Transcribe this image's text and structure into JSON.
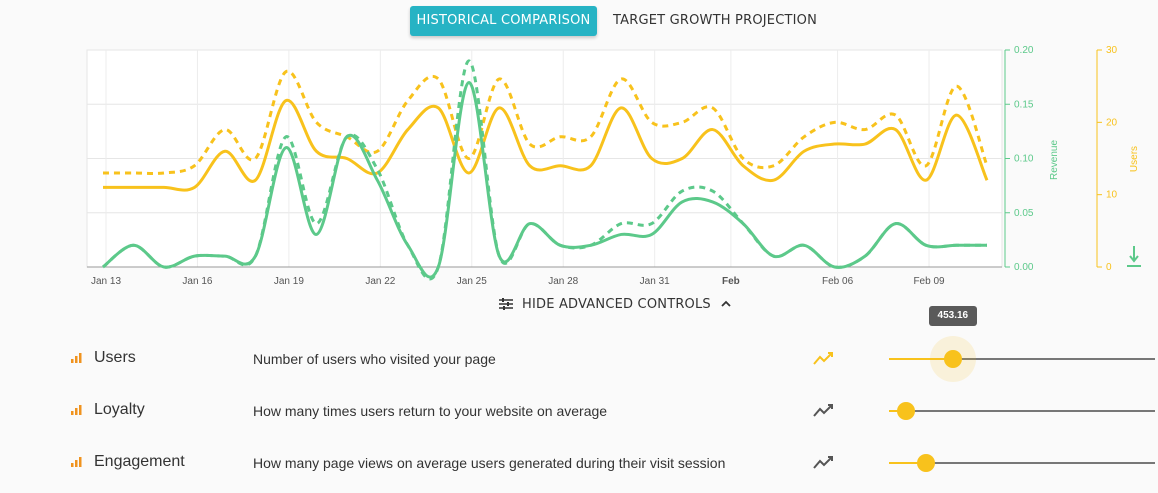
{
  "tabs": [
    {
      "label": "HISTORICAL COMPARISON",
      "active": true
    },
    {
      "label": "TARGET GROWTH PROJECTION",
      "active": false
    }
  ],
  "toggle": {
    "label": "HIDE ADVANCED CONTROLS",
    "icon": "sliders-icon",
    "chevron": "chevron-up-icon"
  },
  "chart_data": {
    "type": "line",
    "x_ticks": [
      "Jan 13",
      "Jan 16",
      "Jan 19",
      "Jan 22",
      "Jan 25",
      "Jan 28",
      "Jan 31",
      "Feb",
      "Feb 06",
      "Feb 09"
    ],
    "x": [
      "Jan 13",
      "Jan 14",
      "Jan 15",
      "Jan 16",
      "Jan 17",
      "Jan 18",
      "Jan 19",
      "Jan 20",
      "Jan 21",
      "Jan 22",
      "Jan 23",
      "Jan 24",
      "Jan 25",
      "Jan 26",
      "Jan 27",
      "Jan 28",
      "Jan 29",
      "Jan 30",
      "Jan 31",
      "Feb 01",
      "Feb 02",
      "Feb 03",
      "Feb 04",
      "Feb 05",
      "Feb 06",
      "Feb 07",
      "Feb 08",
      "Feb 09",
      "Feb 10",
      "Feb 11"
    ],
    "axes": {
      "revenue": {
        "label": "Revenue",
        "ticks": [
          "0.00",
          "0.05",
          "0.10",
          "0.15",
          "0.20"
        ],
        "range": [
          0,
          0.2
        ],
        "color": "#5cc98a"
      },
      "users": {
        "label": "Users",
        "ticks": [
          "0",
          "10",
          "20",
          "30"
        ],
        "range": [
          0,
          30
        ],
        "color": "#f8c21c"
      }
    },
    "grid": true,
    "series": [
      {
        "axis": "users",
        "style": "solid",
        "color": "#f8c21c",
        "values": [
          11,
          11,
          11,
          11,
          16,
          12,
          23,
          16,
          15,
          13,
          19,
          22,
          13,
          22,
          14,
          14,
          14,
          22,
          15,
          15,
          19,
          14,
          12,
          16,
          17,
          17,
          19,
          12,
          21,
          12
        ]
      },
      {
        "axis": "users",
        "style": "dashed",
        "color": "#f8c21c",
        "values": [
          13,
          13,
          13,
          14,
          19,
          15,
          27,
          20,
          18,
          16,
          23,
          26,
          15,
          26,
          17,
          18,
          18,
          26,
          20,
          20,
          22,
          15,
          14,
          18,
          20,
          19,
          21,
          14,
          25,
          14
        ]
      },
      {
        "axis": "revenue",
        "style": "solid",
        "color": "#5cc98a",
        "values": [
          0,
          0.02,
          0,
          0.01,
          0.01,
          0.01,
          0.11,
          0.03,
          0.12,
          0.08,
          0.02,
          0,
          0.17,
          0.01,
          0.04,
          0.02,
          0.02,
          0.03,
          0.03,
          0.06,
          0.06,
          0.04,
          0.01,
          0.02,
          0,
          0.01,
          0.04,
          0.02,
          0.02,
          0.02
        ]
      },
      {
        "axis": "revenue",
        "style": "dashed",
        "color": "#5cc98a",
        "values": [
          0,
          0.02,
          0,
          0.01,
          0.01,
          0.01,
          0.12,
          0.04,
          0.12,
          0.09,
          0.02,
          0,
          0.19,
          0.01,
          0.04,
          0.02,
          0.02,
          0.04,
          0.04,
          0.07,
          0.07,
          0.04,
          0.01,
          0.02,
          0,
          0.01,
          0.04,
          0.02,
          0.02,
          0.02
        ]
      }
    ],
    "download_icon": "download-icon"
  },
  "controls": [
    {
      "name": "Users",
      "description": "Number of users who visited your page",
      "trend_color": "#f8c21c",
      "value_fraction": 0.24,
      "tooltip": "453.16"
    },
    {
      "name": "Loyalty",
      "description": "How many times users return to your website on average",
      "trend_color": "#555555",
      "value_fraction": 0.065
    },
    {
      "name": "Engagement",
      "description": "How many page views on average users generated during their visit session",
      "trend_color": "#555555",
      "value_fraction": 0.14
    }
  ],
  "colors": {
    "accent": "#26b3c4",
    "bar_icon": "#f0931e"
  }
}
